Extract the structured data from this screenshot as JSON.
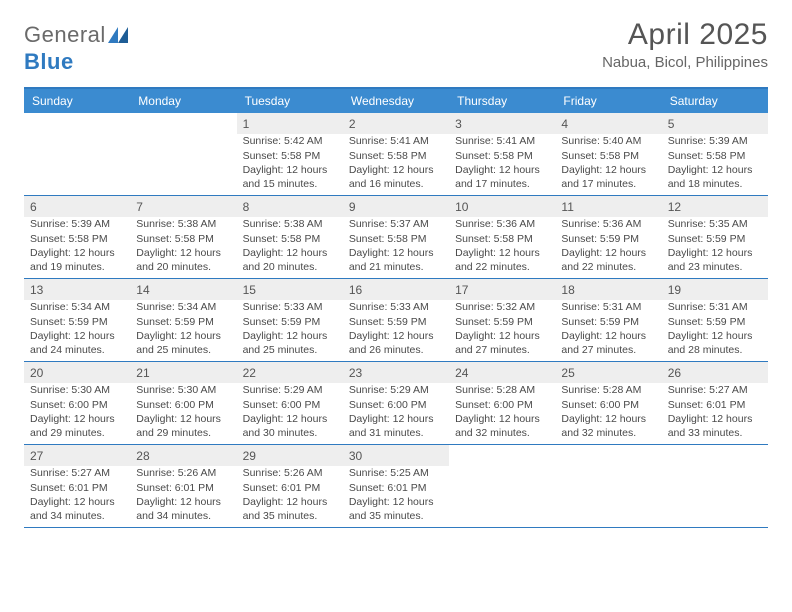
{
  "logo": {
    "text1": "General",
    "text2": "Blue"
  },
  "title": "April 2025",
  "location": "Nabua, Bicol, Philippines",
  "colors": {
    "header_bg": "#3b8bd0",
    "border": "#2f7ac0",
    "daynum_bg": "#eeeeee",
    "text": "#4a4a4a"
  },
  "dayNames": [
    "Sunday",
    "Monday",
    "Tuesday",
    "Wednesday",
    "Thursday",
    "Friday",
    "Saturday"
  ],
  "weeks": [
    [
      null,
      null,
      {
        "n": "1",
        "sr": "5:42 AM",
        "ss": "5:58 PM",
        "dl": "12 hours and 15 minutes."
      },
      {
        "n": "2",
        "sr": "5:41 AM",
        "ss": "5:58 PM",
        "dl": "12 hours and 16 minutes."
      },
      {
        "n": "3",
        "sr": "5:41 AM",
        "ss": "5:58 PM",
        "dl": "12 hours and 17 minutes."
      },
      {
        "n": "4",
        "sr": "5:40 AM",
        "ss": "5:58 PM",
        "dl": "12 hours and 17 minutes."
      },
      {
        "n": "5",
        "sr": "5:39 AM",
        "ss": "5:58 PM",
        "dl": "12 hours and 18 minutes."
      }
    ],
    [
      {
        "n": "6",
        "sr": "5:39 AM",
        "ss": "5:58 PM",
        "dl": "12 hours and 19 minutes."
      },
      {
        "n": "7",
        "sr": "5:38 AM",
        "ss": "5:58 PM",
        "dl": "12 hours and 20 minutes."
      },
      {
        "n": "8",
        "sr": "5:38 AM",
        "ss": "5:58 PM",
        "dl": "12 hours and 20 minutes."
      },
      {
        "n": "9",
        "sr": "5:37 AM",
        "ss": "5:58 PM",
        "dl": "12 hours and 21 minutes."
      },
      {
        "n": "10",
        "sr": "5:36 AM",
        "ss": "5:58 PM",
        "dl": "12 hours and 22 minutes."
      },
      {
        "n": "11",
        "sr": "5:36 AM",
        "ss": "5:59 PM",
        "dl": "12 hours and 22 minutes."
      },
      {
        "n": "12",
        "sr": "5:35 AM",
        "ss": "5:59 PM",
        "dl": "12 hours and 23 minutes."
      }
    ],
    [
      {
        "n": "13",
        "sr": "5:34 AM",
        "ss": "5:59 PM",
        "dl": "12 hours and 24 minutes."
      },
      {
        "n": "14",
        "sr": "5:34 AM",
        "ss": "5:59 PM",
        "dl": "12 hours and 25 minutes."
      },
      {
        "n": "15",
        "sr": "5:33 AM",
        "ss": "5:59 PM",
        "dl": "12 hours and 25 minutes."
      },
      {
        "n": "16",
        "sr": "5:33 AM",
        "ss": "5:59 PM",
        "dl": "12 hours and 26 minutes."
      },
      {
        "n": "17",
        "sr": "5:32 AM",
        "ss": "5:59 PM",
        "dl": "12 hours and 27 minutes."
      },
      {
        "n": "18",
        "sr": "5:31 AM",
        "ss": "5:59 PM",
        "dl": "12 hours and 27 minutes."
      },
      {
        "n": "19",
        "sr": "5:31 AM",
        "ss": "5:59 PM",
        "dl": "12 hours and 28 minutes."
      }
    ],
    [
      {
        "n": "20",
        "sr": "5:30 AM",
        "ss": "6:00 PM",
        "dl": "12 hours and 29 minutes."
      },
      {
        "n": "21",
        "sr": "5:30 AM",
        "ss": "6:00 PM",
        "dl": "12 hours and 29 minutes."
      },
      {
        "n": "22",
        "sr": "5:29 AM",
        "ss": "6:00 PM",
        "dl": "12 hours and 30 minutes."
      },
      {
        "n": "23",
        "sr": "5:29 AM",
        "ss": "6:00 PM",
        "dl": "12 hours and 31 minutes."
      },
      {
        "n": "24",
        "sr": "5:28 AM",
        "ss": "6:00 PM",
        "dl": "12 hours and 32 minutes."
      },
      {
        "n": "25",
        "sr": "5:28 AM",
        "ss": "6:00 PM",
        "dl": "12 hours and 32 minutes."
      },
      {
        "n": "26",
        "sr": "5:27 AM",
        "ss": "6:01 PM",
        "dl": "12 hours and 33 minutes."
      }
    ],
    [
      {
        "n": "27",
        "sr": "5:27 AM",
        "ss": "6:01 PM",
        "dl": "12 hours and 34 minutes."
      },
      {
        "n": "28",
        "sr": "5:26 AM",
        "ss": "6:01 PM",
        "dl": "12 hours and 34 minutes."
      },
      {
        "n": "29",
        "sr": "5:26 AM",
        "ss": "6:01 PM",
        "dl": "12 hours and 35 minutes."
      },
      {
        "n": "30",
        "sr": "5:25 AM",
        "ss": "6:01 PM",
        "dl": "12 hours and 35 minutes."
      },
      null,
      null,
      null
    ]
  ],
  "labels": {
    "sunrise": "Sunrise:",
    "sunset": "Sunset:",
    "daylight": "Daylight:"
  }
}
